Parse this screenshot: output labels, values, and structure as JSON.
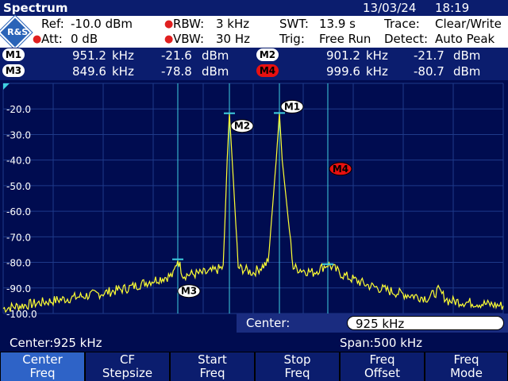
{
  "titlebar": {
    "title": "Spectrum",
    "date": "13/03/24",
    "time": "18:19"
  },
  "settings": {
    "ref_label": "Ref:",
    "ref_value": "-10.0 dBm",
    "att_label": "Att:",
    "att_value": "0 dB",
    "rbw_label": "RBW:",
    "rbw_value": "3 kHz",
    "vbw_label": "VBW:",
    "vbw_value": "30 Hz",
    "swt_label": "SWT:",
    "swt_value": "13.9 s",
    "trig_label": "Trig:",
    "trig_value": "Free Run",
    "trace_label": "Trace:",
    "trace_value": "Clear/Write",
    "detect_label": "Detect:",
    "detect_value": "Auto Peak",
    "logo_text": "R&S"
  },
  "markers": [
    {
      "id": "M1",
      "freq": "951.2",
      "funit": "kHz",
      "level": "-21.6",
      "lunit": "dBm",
      "color": "#ffffff"
    },
    {
      "id": "M2",
      "freq": "901.2",
      "funit": "kHz",
      "level": "-21.7",
      "lunit": "dBm",
      "color": "#ffffff"
    },
    {
      "id": "M3",
      "freq": "849.6",
      "funit": "kHz",
      "level": "-78.8",
      "lunit": "dBm",
      "color": "#ffffff"
    },
    {
      "id": "M4",
      "freq": "999.6",
      "funit": "kHz",
      "level": "-80.7",
      "lunit": "dBm",
      "color": "#e81010"
    }
  ],
  "plot": {
    "y_ticks": [
      "-20.0",
      "-30.0",
      "-40.0",
      "-50.0",
      "-60.0",
      "-70.0",
      "-80.0",
      "-90.0",
      "-100.0"
    ],
    "trace_color": "#ffff33",
    "grid_color": "#1e3a8a",
    "marker_line_color": "#3fd0e0"
  },
  "chart_data": {
    "type": "line",
    "x_unit": "kHz",
    "y_unit": "dBm",
    "xlim": [
      675,
      1175
    ],
    "ylim": [
      -100,
      -10
    ],
    "series": [
      {
        "x": [
          675,
          725,
          775,
          800,
          825,
          845,
          849.6,
          855,
          880,
          895,
          899,
          901.2,
          904,
          910,
          925,
          940,
          948,
          951.2,
          954,
          965,
          985,
          999.6,
          1015,
          1040,
          1070,
          1100,
          1110,
          1120,
          1150,
          1175
        ],
        "y": [
          -98,
          -95,
          -92,
          -90,
          -87,
          -85,
          -78.8,
          -85,
          -84,
          -82,
          -40,
          -21.7,
          -40,
          -82,
          -84,
          -80,
          -40,
          -21.6,
          -40,
          -82,
          -84,
          -80.7,
          -85,
          -89,
          -92,
          -94,
          -91,
          -95,
          -96,
          -97
        ]
      }
    ],
    "markers": [
      {
        "id": "M1",
        "x": 951.2,
        "y": -21.6
      },
      {
        "id": "M2",
        "x": 901.2,
        "y": -21.7
      },
      {
        "id": "M3",
        "x": 849.6,
        "y": -78.8
      },
      {
        "id": "M4",
        "x": 999.6,
        "y": -80.7
      }
    ]
  },
  "center_field": {
    "label": "Center:",
    "value": "925 kHz"
  },
  "status": {
    "center": "Center:925 kHz",
    "span": "Span:500 kHz"
  },
  "softkeys": [
    {
      "line1": "Center",
      "line2": "Freq",
      "active": true
    },
    {
      "line1": "CF",
      "line2": "Stepsize",
      "active": false
    },
    {
      "line1": "Start",
      "line2": "Freq",
      "active": false
    },
    {
      "line1": "Stop",
      "line2": "Freq",
      "active": false
    },
    {
      "line1": "Freq",
      "line2": "Offset",
      "active": false
    },
    {
      "line1": "Freq",
      "line2": "Mode",
      "active": false
    }
  ]
}
